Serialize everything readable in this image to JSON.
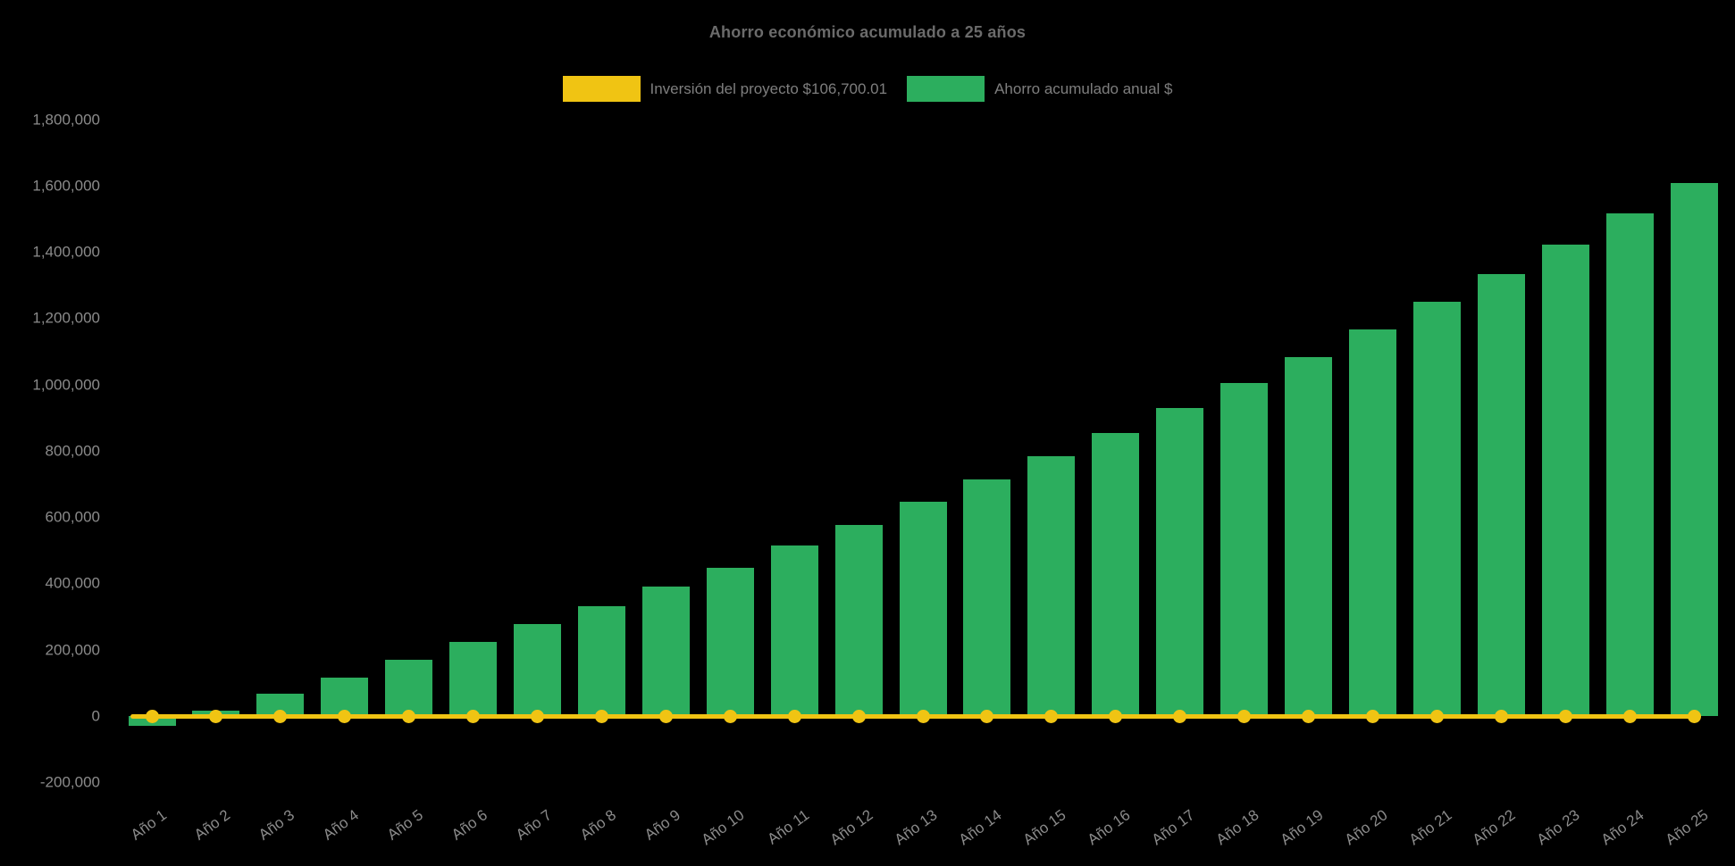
{
  "chart_data": {
    "type": "bar",
    "title": "Ahorro económico acumulado a 25 años",
    "xlabel": "",
    "ylabel": "",
    "ylim": [
      -200000,
      1800000
    ],
    "ytick_step": 200000,
    "grid": false,
    "legend_position": "top",
    "background_color": "#000000",
    "text_colors": {
      "title": "#6b6b6b",
      "legend": "#7e7e7e",
      "ticks": "#8b8b8b"
    },
    "categories": [
      "Año 1",
      "Año 2",
      "Año 3",
      "Año 4",
      "Año 5",
      "Año 6",
      "Año 7",
      "Año 8",
      "Año 9",
      "Año 10",
      "Año 11",
      "Año 12",
      "Año 13",
      "Año 14",
      "Año 15",
      "Año 16",
      "Año 17",
      "Año 18",
      "Año 19",
      "Año 20",
      "Año 21",
      "Año 22",
      "Año 23",
      "Año 24",
      "Año 25"
    ],
    "series": [
      {
        "name": "Inversión del proyecto $106,700.01",
        "type": "line",
        "color": "#F0C413",
        "labeled_value": 106700.01,
        "values": [
          0,
          0,
          0,
          0,
          0,
          0,
          0,
          0,
          0,
          0,
          0,
          0,
          0,
          0,
          0,
          0,
          0,
          0,
          0,
          0,
          0,
          0,
          0,
          0,
          0
        ]
      },
      {
        "name": "Ahorro acumulado anual $",
        "type": "bar",
        "color": "#2CAE5E",
        "values": [
          -30000,
          15000,
          67000,
          116000,
          170000,
          224000,
          277000,
          331000,
          391000,
          447000,
          514000,
          576000,
          646000,
          714000,
          784000,
          854000,
          929000,
          1005000,
          1083000,
          1166000,
          1250000,
          1333000,
          1422000,
          1516000,
          1608000
        ]
      }
    ]
  }
}
